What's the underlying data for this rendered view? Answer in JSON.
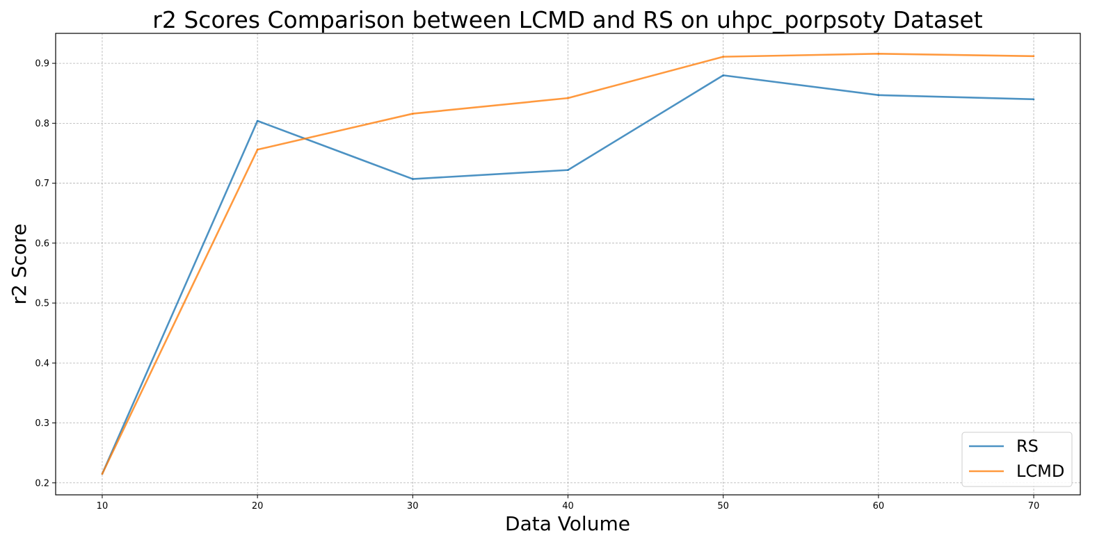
{
  "chart_data": {
    "type": "line",
    "title": "r2 Scores Comparison between LCMD and RS on uhpc_porpsoty Dataset",
    "xlabel": "Data Volume",
    "ylabel": "r2 Score",
    "x": [
      10,
      20,
      30,
      40,
      50,
      60,
      70
    ],
    "xticks": [
      "10",
      "20",
      "30",
      "40",
      "50",
      "60",
      "70"
    ],
    "yticks": [
      "0.2",
      "0.3",
      "0.4",
      "0.5",
      "0.6",
      "0.7",
      "0.8",
      "0.9"
    ],
    "xlim": [
      7,
      73
    ],
    "ylim": [
      0.18,
      0.95
    ],
    "grid": true,
    "legend_position": "lower-right",
    "series": [
      {
        "name": "RS",
        "color": "#1f77b4",
        "values": [
          0.215,
          0.804,
          0.707,
          0.722,
          0.88,
          0.847,
          0.84
        ]
      },
      {
        "name": "LCMD",
        "color": "#ff7f0e",
        "values": [
          0.215,
          0.756,
          0.816,
          0.842,
          0.911,
          0.916,
          0.912
        ]
      }
    ]
  }
}
